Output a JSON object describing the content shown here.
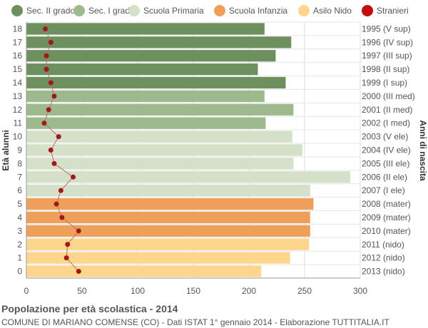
{
  "legend": [
    {
      "label": "Sec. II grado",
      "color": "#6e8f5e"
    },
    {
      "label": "Sec. I grado",
      "color": "#9fb98f"
    },
    {
      "label": "Scuola Primaria",
      "color": "#d5e0c8"
    },
    {
      "label": "Scuola Infanzia",
      "color": "#eea05a"
    },
    {
      "label": "Asilo Nido",
      "color": "#fdd68e"
    },
    {
      "label": "Stranieri",
      "color": "#c40e0e"
    }
  ],
  "footer": {
    "title": "Popolazione per età scolastica - 2014",
    "subtitle": "COMUNE DI MARIANO COMENSE (CO) - Dati ISTAT 1° gennaio 2014 - Elaborazione TUTTITALIA.IT"
  },
  "chart_data": {
    "type": "bar",
    "orientation": "horizontal",
    "ylabel": "Età alunni",
    "ylabel_right": "Anni di nascita",
    "xlim": [
      0,
      300
    ],
    "xticks": [
      0,
      50,
      100,
      150,
      200,
      250,
      300
    ],
    "grid": true,
    "legend_position": "top",
    "ages": [
      18,
      17,
      16,
      15,
      14,
      13,
      12,
      11,
      10,
      9,
      8,
      7,
      6,
      5,
      4,
      3,
      2,
      1,
      0
    ],
    "birth_years": [
      "1995 (V sup)",
      "1996 (IV sup)",
      "1997 (III sup)",
      "1998 (II sup)",
      "1999 (I sup)",
      "2000 (III med)",
      "2001 (II med)",
      "2002 (I med)",
      "2003 (V ele)",
      "2004 (IV ele)",
      "2005 (III ele)",
      "2006 (II ele)",
      "2007 (I ele)",
      "2008 (mater)",
      "2009 (mater)",
      "2010 (mater)",
      "2011 (nido)",
      "2012 (nido)",
      "2013 (nido)"
    ],
    "series": [
      {
        "name": "Alunni",
        "values": [
          214,
          238,
          224,
          208,
          233,
          214,
          240,
          215,
          239,
          248,
          240,
          291,
          255,
          258,
          255,
          255,
          254,
          237,
          211
        ],
        "groups": [
          "Sec. II grado",
          "Sec. II grado",
          "Sec. II grado",
          "Sec. II grado",
          "Sec. II grado",
          "Sec. I grado",
          "Sec. I grado",
          "Sec. I grado",
          "Scuola Primaria",
          "Scuola Primaria",
          "Scuola Primaria",
          "Scuola Primaria",
          "Scuola Primaria",
          "Scuola Infanzia",
          "Scuola Infanzia",
          "Scuola Infanzia",
          "Asilo Nido",
          "Asilo Nido",
          "Asilo Nido"
        ]
      },
      {
        "name": "Stranieri",
        "values": [
          17,
          22,
          18,
          18,
          22,
          25,
          20,
          16,
          29,
          22,
          25,
          42,
          31,
          27,
          32,
          47,
          37,
          36,
          47
        ]
      }
    ]
  }
}
